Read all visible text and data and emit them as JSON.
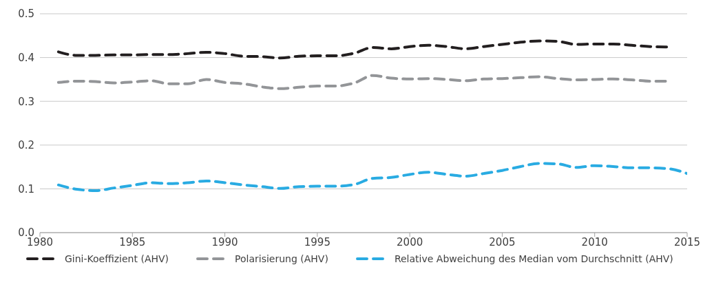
{
  "chart_data": {
    "type": "line",
    "x": [
      1981,
      1982,
      1983,
      1984,
      1985,
      1986,
      1987,
      1988,
      1989,
      1990,
      1991,
      1992,
      1993,
      1994,
      1995,
      1996,
      1997,
      1998,
      1999,
      2000,
      2001,
      2002,
      2003,
      2004,
      2005,
      2006,
      2007,
      2008,
      2009,
      2010,
      2011,
      2012,
      2013,
      2014,
      2015
    ],
    "series": [
      {
        "name": "Gini-Koeffizient (AHV)",
        "color": "#231f20",
        "values": [
          0.413,
          0.405,
          0.405,
          0.406,
          0.406,
          0.407,
          0.407,
          0.409,
          0.412,
          0.409,
          0.403,
          0.402,
          0.399,
          0.403,
          0.404,
          0.404,
          0.41,
          0.423,
          0.42,
          0.425,
          0.428,
          0.425,
          0.42,
          0.425,
          0.43,
          0.435,
          0.438,
          0.437,
          0.43,
          0.431,
          0.431,
          0.428,
          0.425,
          0.424,
          null
        ]
      },
      {
        "name": "Polarisierung (AHV)",
        "color": "#939598",
        "values": [
          0.343,
          0.346,
          0.345,
          0.342,
          0.344,
          0.347,
          0.34,
          0.34,
          0.35,
          0.343,
          0.34,
          0.333,
          0.329,
          0.332,
          0.335,
          0.335,
          0.342,
          0.359,
          0.353,
          0.351,
          0.352,
          0.35,
          0.347,
          0.351,
          0.352,
          0.354,
          0.356,
          0.352,
          0.349,
          0.35,
          0.351,
          0.349,
          0.346,
          0.346,
          null
        ]
      },
      {
        "name": "Relative Abweichung des Median vom Durchschnitt (AHV)",
        "color": "#29abe2",
        "values": [
          0.109,
          0.099,
          0.096,
          0.102,
          0.108,
          0.114,
          0.112,
          0.114,
          0.118,
          0.114,
          0.109,
          0.105,
          0.101,
          0.105,
          0.106,
          0.106,
          0.11,
          0.124,
          0.126,
          0.133,
          0.138,
          0.133,
          0.129,
          0.135,
          0.142,
          0.151,
          0.158,
          0.157,
          0.149,
          0.153,
          0.151,
          0.148,
          0.148,
          0.146,
          0.135
        ]
      }
    ],
    "xlim": [
      1980,
      2015
    ],
    "xticks": [
      1980,
      1985,
      1990,
      1995,
      2000,
      2005,
      2010,
      2015
    ],
    "ylim": [
      0,
      0.5
    ],
    "yticks": [
      {
        "value": 0,
        "label": "0.0"
      },
      {
        "value": 0.1,
        "label": "0.1"
      },
      {
        "value": 0.2,
        "label": "0.2"
      },
      {
        "value": 0.3,
        "label": "0.3"
      },
      {
        "value": 0.4,
        "label": "0.4"
      },
      {
        "value": 0.5,
        "label": "0.5"
      }
    ],
    "grid": "y",
    "legend": "bottom",
    "line_style": "dashed",
    "marker": "none"
  }
}
